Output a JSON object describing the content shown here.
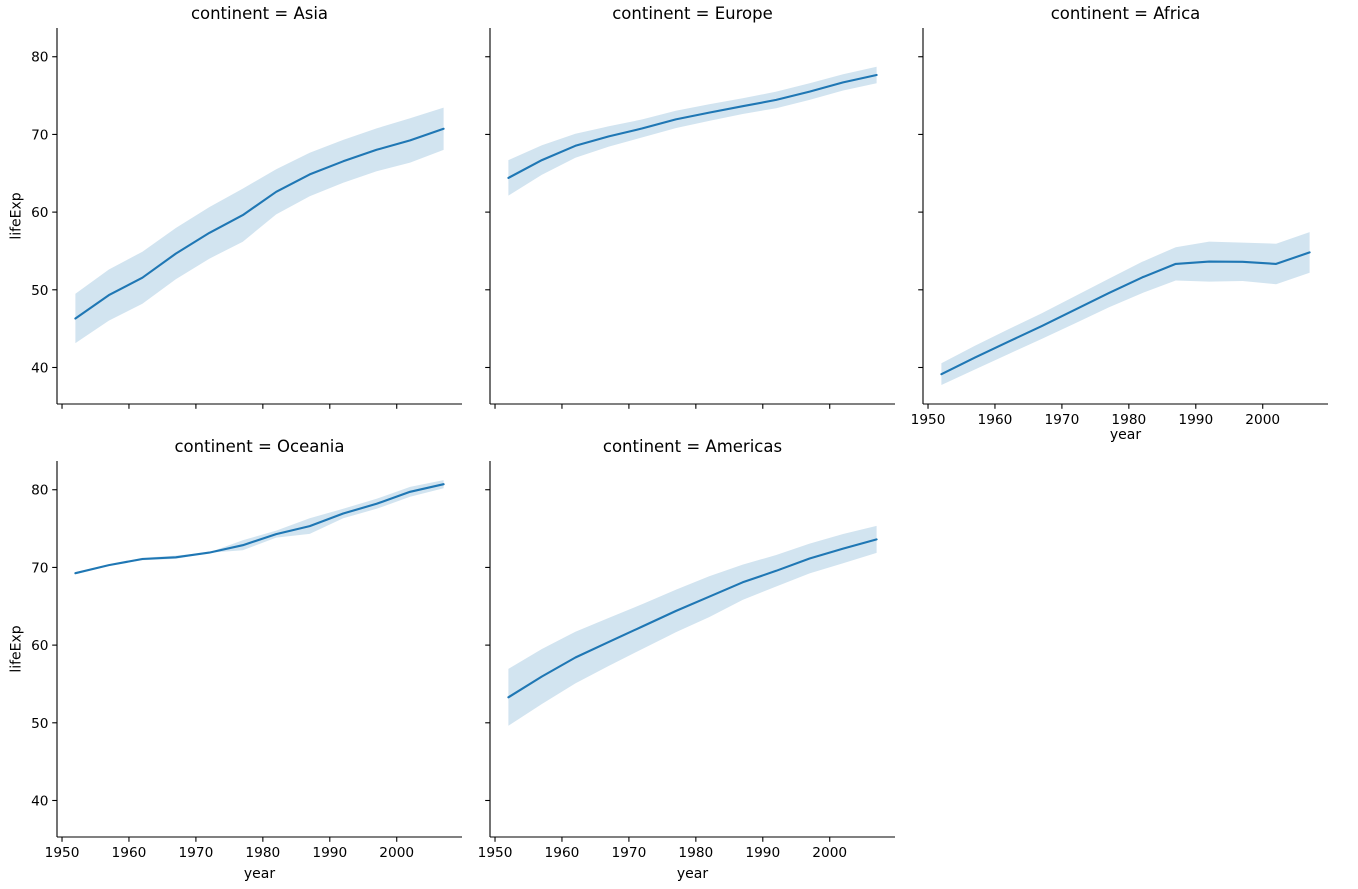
{
  "figure": {
    "background": "#ffffff"
  },
  "chart_data": {
    "type": "line",
    "xlabel": "year",
    "ylabel": "lifeExp",
    "x": [
      1952,
      1957,
      1962,
      1967,
      1972,
      1977,
      1982,
      1987,
      1992,
      1997,
      2002,
      2007
    ],
    "xlim": [
      1949.25,
      2009.75
    ],
    "ylim": [
      35.3,
      83.7
    ],
    "xticks": [
      1950,
      1960,
      1970,
      1980,
      1990,
      2000
    ],
    "yticks": [
      40,
      50,
      60,
      70,
      80
    ],
    "grid": false,
    "legend": "none",
    "line_color": "#1f77b4",
    "band_opacity": 0.2,
    "spine_color": "#000000",
    "facets": [
      {
        "title": "continent = Asia",
        "mean": [
          46.31,
          49.32,
          51.56,
          54.66,
          57.32,
          59.61,
          62.62,
          64.85,
          66.54,
          68.02,
          69.23,
          70.73
        ],
        "lo": [
          43.14,
          46.03,
          48.21,
          51.37,
          54.0,
          56.19,
          59.71,
          62.05,
          63.78,
          65.26,
          66.37,
          68.01
        ],
        "hi": [
          49.48,
          52.61,
          54.91,
          57.95,
          60.64,
          63.03,
          65.53,
          67.65,
          69.3,
          70.78,
          72.09,
          73.45
        ],
        "show_y_tick_labels": true,
        "show_x_tick_labels": false
      },
      {
        "title": "continent = Europe",
        "mean": [
          64.41,
          66.7,
          68.54,
          69.74,
          70.78,
          71.94,
          72.81,
          73.64,
          74.44,
          75.51,
          76.7,
          77.65
        ],
        "lo": [
          62.13,
          64.8,
          67.0,
          68.43,
          69.62,
          70.82,
          71.74,
          72.63,
          73.37,
          74.44,
          75.65,
          76.58
        ],
        "hi": [
          66.69,
          68.6,
          70.08,
          71.05,
          71.94,
          73.06,
          73.88,
          74.65,
          75.51,
          76.58,
          77.75,
          78.72
        ],
        "show_y_tick_labels": false,
        "show_x_tick_labels": false
      },
      {
        "title": "continent = Africa",
        "mean": [
          39.14,
          41.27,
          43.32,
          45.33,
          47.45,
          49.58,
          51.59,
          53.34,
          53.63,
          53.6,
          53.33,
          54.81
        ],
        "lo": [
          37.74,
          39.74,
          41.72,
          43.68,
          45.7,
          47.73,
          49.58,
          51.2,
          51.06,
          51.13,
          50.72,
          52.19
        ],
        "hi": [
          40.54,
          42.8,
          44.92,
          46.98,
          49.2,
          51.43,
          53.6,
          55.48,
          56.2,
          56.07,
          55.94,
          57.43
        ],
        "show_y_tick_labels": false,
        "show_x_tick_labels": true
      },
      {
        "title": "continent = Oceania",
        "mean": [
          69.26,
          70.3,
          71.09,
          71.31,
          71.91,
          72.86,
          74.29,
          75.32,
          76.94,
          78.19,
          79.74,
          80.72
        ],
        "lo": [
          69.12,
          70.26,
          70.93,
          71.1,
          71.89,
          72.22,
          73.84,
          74.32,
          76.33,
          77.55,
          79.11,
          80.2
        ],
        "hi": [
          69.39,
          70.33,
          71.24,
          71.52,
          71.93,
          73.49,
          74.74,
          76.32,
          77.56,
          78.83,
          80.37,
          81.24
        ],
        "show_y_tick_labels": true,
        "show_x_tick_labels": true
      },
      {
        "title": "continent = Americas",
        "mean": [
          53.28,
          55.96,
          58.4,
          60.41,
          62.39,
          64.39,
          66.23,
          68.09,
          69.57,
          71.15,
          72.42,
          73.61
        ],
        "lo": [
          49.62,
          52.42,
          55.07,
          57.32,
          59.5,
          61.65,
          63.6,
          65.82,
          67.54,
          69.23,
          70.54,
          71.87
        ],
        "hi": [
          56.94,
          59.5,
          61.73,
          63.5,
          65.28,
          67.13,
          68.86,
          70.36,
          71.6,
          73.07,
          74.3,
          75.35
        ],
        "show_y_tick_labels": false,
        "show_x_tick_labels": true
      }
    ]
  }
}
